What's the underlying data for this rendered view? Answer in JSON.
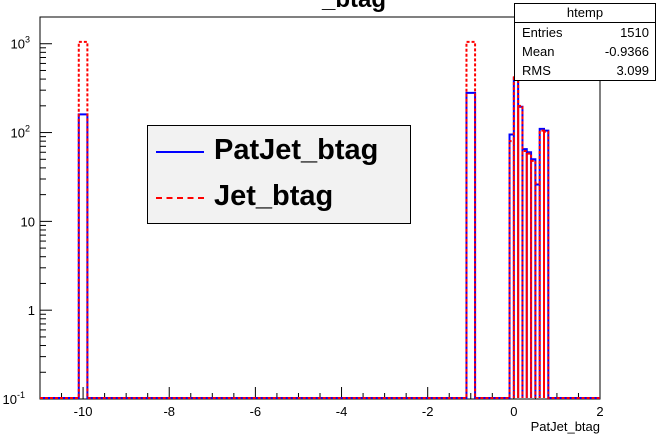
{
  "chart_data": {
    "type": "line",
    "title": "_btag",
    "xlabel": "PatJet_btag",
    "ylabel": "",
    "xlim": [
      -11,
      2
    ],
    "ylim": [
      0.1,
      2000
    ],
    "log_y": true,
    "grid": false,
    "x_ticks": [
      "-10",
      "-8",
      "-6",
      "-4",
      "-2",
      "0",
      "2"
    ],
    "y_ticks": [
      {
        "base": "10",
        "exp": "-1"
      },
      {
        "base": "1",
        "exp": ""
      },
      {
        "base": "10",
        "exp": ""
      },
      {
        "base": "10",
        "exp": "2"
      },
      {
        "base": "10",
        "exp": "3"
      }
    ],
    "legend_position": "center-left",
    "series": [
      {
        "name": "PatJet_btag",
        "color": "#0000ff",
        "style": "solid",
        "bins": [
          {
            "lo": -10.1,
            "hi": -9.9,
            "v": 160
          },
          {
            "lo": -1.1,
            "hi": -0.9,
            "v": 280
          },
          {
            "lo": -0.1,
            "hi": 0.0,
            "v": 95
          },
          {
            "lo": 0.0,
            "hi": 0.1,
            "v": 410
          },
          {
            "lo": 0.1,
            "hi": 0.2,
            "v": 195
          },
          {
            "lo": 0.2,
            "hi": 0.3,
            "v": 65
          },
          {
            "lo": 0.3,
            "hi": 0.4,
            "v": 60
          },
          {
            "lo": 0.4,
            "hi": 0.5,
            "v": 50
          },
          {
            "lo": 0.5,
            "hi": 0.6,
            "v": 26
          },
          {
            "lo": 0.6,
            "hi": 0.7,
            "v": 110
          },
          {
            "lo": 0.7,
            "hi": 0.8,
            "v": 105
          }
        ]
      },
      {
        "name": "Jet_btag",
        "color": "#ff0000",
        "style": "dashed",
        "bins": [
          {
            "lo": -10.1,
            "hi": -9.9,
            "v": 1050
          },
          {
            "lo": -1.1,
            "hi": -0.9,
            "v": 1050
          },
          {
            "lo": -0.1,
            "hi": 0.0,
            "v": 80
          },
          {
            "lo": 0.0,
            "hi": 0.1,
            "v": 420
          },
          {
            "lo": 0.1,
            "hi": 0.2,
            "v": 200
          },
          {
            "lo": 0.2,
            "hi": 0.3,
            "v": 62
          },
          {
            "lo": 0.3,
            "hi": 0.4,
            "v": 58
          },
          {
            "lo": 0.4,
            "hi": 0.5,
            "v": 48
          },
          {
            "lo": 0.5,
            "hi": 0.6,
            "v": 27
          },
          {
            "lo": 0.6,
            "hi": 0.7,
            "v": 105
          },
          {
            "lo": 0.7,
            "hi": 0.8,
            "v": 102
          }
        ]
      }
    ]
  },
  "stats": {
    "title": "htemp",
    "rows": [
      {
        "label": "Entries",
        "value": "1510"
      },
      {
        "label": "Mean",
        "value": "-0.9366"
      },
      {
        "label": "RMS",
        "value": "3.099"
      }
    ]
  },
  "legend": {
    "entries": [
      {
        "label": "PatJet_btag",
        "color": "#0000ff",
        "style": "solid"
      },
      {
        "label": "Jet_btag",
        "color": "#ff0000",
        "style": "dashed"
      }
    ]
  }
}
